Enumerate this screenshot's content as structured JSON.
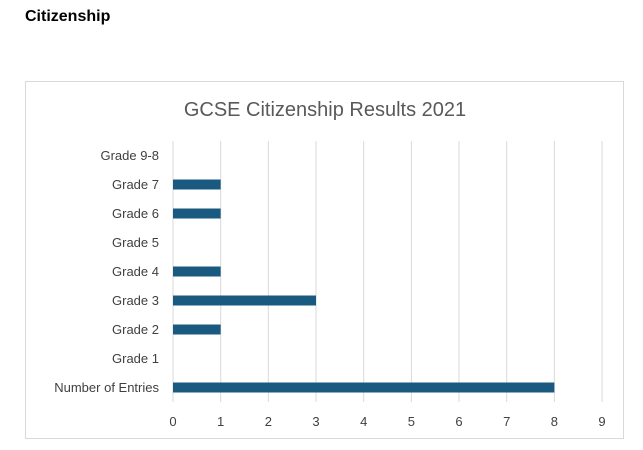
{
  "page": {
    "heading": "Citizenship"
  },
  "chart_data": {
    "type": "bar",
    "orientation": "horizontal",
    "title": "GCSE Citizenship Results 2021",
    "categories": [
      "Number of Entries",
      "Grade 1",
      "Grade 2",
      "Grade 3",
      "Grade 4",
      "Grade 5",
      "Grade 6",
      "Grade 7",
      "Grade 9-8"
    ],
    "values": [
      8,
      0,
      1,
      3,
      1,
      0,
      1,
      1,
      0
    ],
    "xlim": [
      0,
      9
    ],
    "xticks": [
      "0",
      "1",
      "2",
      "3",
      "4",
      "5",
      "6",
      "7",
      "8",
      "9"
    ],
    "grid": "vertical",
    "legend": "none",
    "bar_color": "#1b5a80",
    "grid_color": "#d9d9d9"
  }
}
